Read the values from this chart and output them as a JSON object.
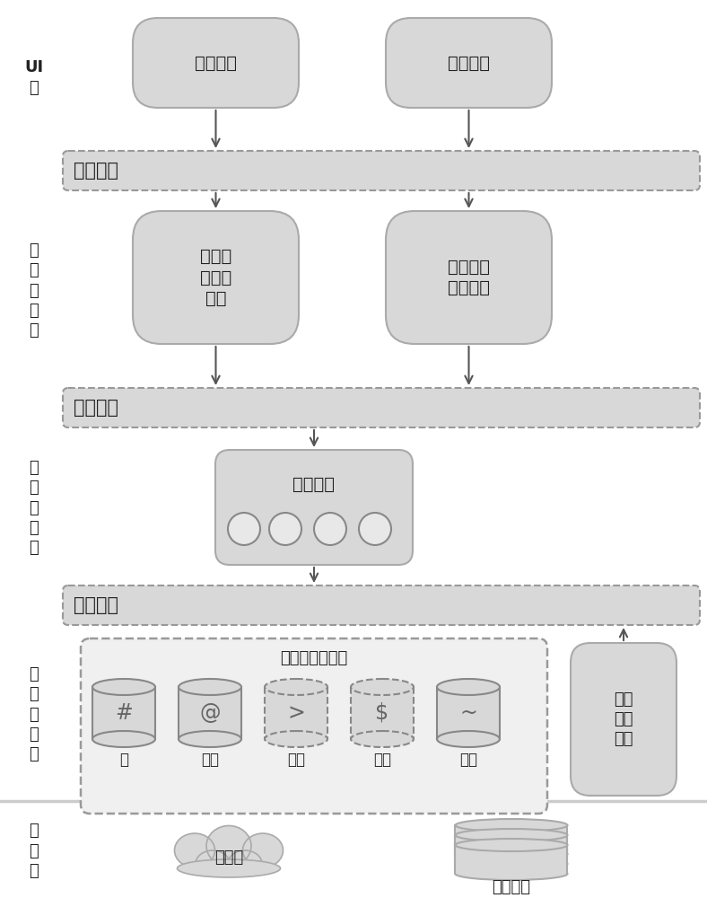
{
  "bg_color": "#ffffff",
  "box_fill": "#d8d8d8",
  "bus_fill": "#d8d8d8",
  "meta_fill": "#f0f0f0",
  "text_color": "#222222",
  "ui_layer_label": "UI\n层",
  "biz_layer_label": "业\n务\n服\n务\n层",
  "combo_layer_label": "组\n合\n服\n务\n层",
  "base_layer_label": "基\n础\n服\n务\n层",
  "resource_layer_label": "资\n源\n层",
  "service_bus_label": "服务总线",
  "ui_box1_label": "显示模块",
  "ui_box2_label": "处理模块",
  "biz_box1_label": "规则执\n行服务\n模块",
  "biz_box2_label": "活动历程\n服务模块",
  "push_label": "推送服务",
  "base_meta_label": "基础元数据服务",
  "rule_label": "规则\n配置\n服务",
  "cloud_label": "云服务",
  "db_label": "数据服务",
  "db_icons": [
    "#",
    "@",
    ">",
    "$",
    "~"
  ],
  "db_names": [
    "域",
    "主体",
    "工单",
    "标的",
    "活动"
  ],
  "db_dashed": [
    false,
    false,
    true,
    true,
    false
  ],
  "fig_w": 7.88,
  "fig_h": 10.0,
  "dpi": 100
}
